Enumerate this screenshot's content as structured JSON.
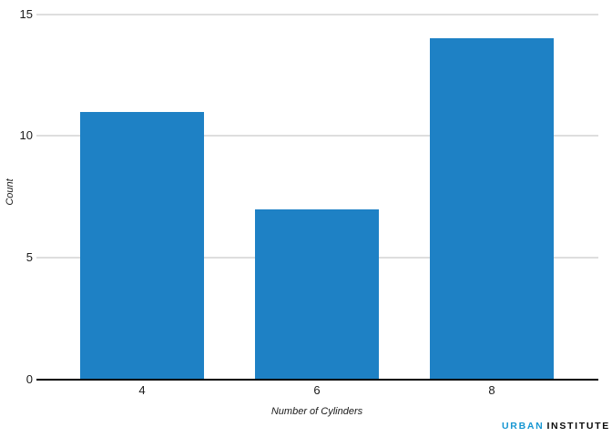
{
  "chart_data": {
    "type": "bar",
    "title": "",
    "categories": [
      "4",
      "6",
      "8"
    ],
    "values": [
      11,
      7,
      14
    ],
    "xlabel": "Number of Cylinders",
    "ylabel": "Count",
    "ylim": [
      0,
      15
    ],
    "yticks": [
      0,
      5,
      10,
      15
    ],
    "grid": true,
    "legend": "none",
    "bar_color": "#1e81c5",
    "gridline_color": "#dedede",
    "axis_color": "#000000",
    "text_color": "#1a1a1a"
  },
  "branding": {
    "urban": "URBAN",
    "institute": "INSTITUTE",
    "urban_color": "#1696d2",
    "institute_color": "#0a0a0a"
  }
}
